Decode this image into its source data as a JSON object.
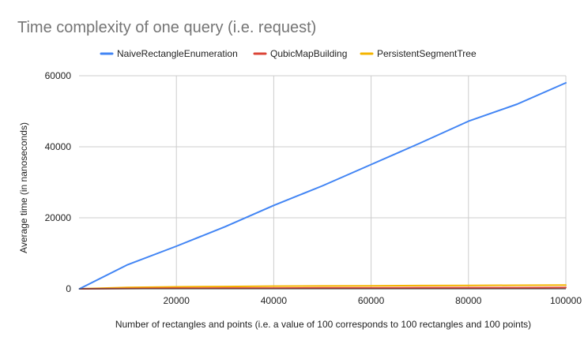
{
  "chart_data": {
    "type": "line",
    "title": "Time complexity of one query (i.e. request)",
    "xlabel": "Number of rectangles and points (i.e. a value of 100 corresponds to 100 rectangles and 100 points)",
    "ylabel": "Average time (in nanoseconds)",
    "xlim": [
      0,
      100000
    ],
    "ylim": [
      0,
      60000
    ],
    "x_ticks": [
      20000,
      40000,
      60000,
      80000,
      100000
    ],
    "y_ticks": [
      0,
      20000,
      40000,
      60000
    ],
    "grid": true,
    "legend_position": "top",
    "series": [
      {
        "name": "NaiveRectangleEnumeration",
        "color": "#4285F4",
        "x": [
          100,
          10000,
          20000,
          30000,
          40000,
          50000,
          60000,
          70000,
          80000,
          90000,
          100000
        ],
        "y": [
          0,
          6800,
          12000,
          17500,
          23500,
          29000,
          35000,
          41000,
          47200,
          52000,
          58000
        ]
      },
      {
        "name": "QubicMapBuilding",
        "color": "#DB4437",
        "x": [
          100,
          10000,
          20000,
          30000,
          40000,
          50000,
          60000,
          70000,
          80000,
          90000,
          100000
        ],
        "y": [
          0,
          100,
          150,
          200,
          200,
          250,
          250,
          300,
          300,
          300,
          350
        ]
      },
      {
        "name": "PersistentSegmentTree",
        "color": "#F4B400",
        "x": [
          100,
          10000,
          20000,
          30000,
          40000,
          50000,
          60000,
          70000,
          80000,
          90000,
          100000
        ],
        "y": [
          0,
          400,
          550,
          650,
          750,
          800,
          850,
          900,
          950,
          1000,
          1050
        ]
      }
    ]
  }
}
